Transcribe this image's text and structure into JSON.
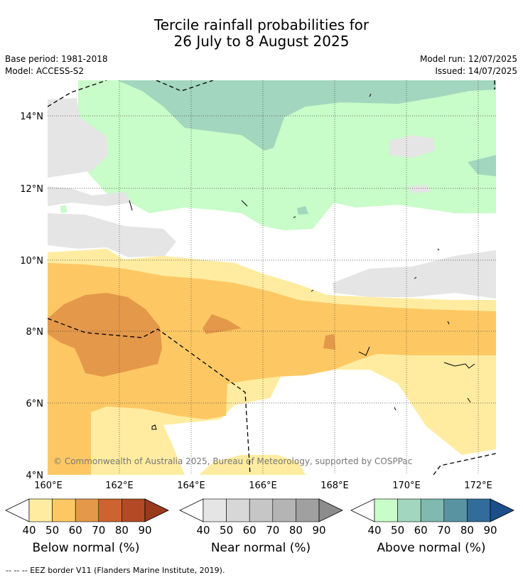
{
  "title": {
    "line1": "Tercile rainfall probabilities for",
    "line2": "26 July to 8 August 2025"
  },
  "meta": {
    "base_period": "Base period: 1981-2018",
    "model": "Model: ACCESS-S2",
    "model_run": "Model run: 12/07/2025",
    "issued": "Issued: 14/07/2025"
  },
  "map": {
    "lat_labels": [
      "14°N",
      "12°N",
      "10°N",
      "8°N",
      "6°N",
      "4°N"
    ],
    "lon_labels": [
      "160°E",
      "162°E",
      "164°E",
      "166°E",
      "168°E",
      "170°E",
      "172°E"
    ],
    "copyright": "© Commonwealth of Australia 2025, Bureau of Meteorology, supported by COSPPac"
  },
  "colorbars": [
    {
      "label": "Below normal (%)",
      "ticks": [
        "40",
        "50",
        "60",
        "70",
        "80",
        "90"
      ],
      "colors": [
        "#ffeca0",
        "#fdc864",
        "#e4984a",
        "#cd6331",
        "#b24a26",
        "#9a3a1d"
      ]
    },
    {
      "label": "Near normal (%)",
      "ticks": [
        "40",
        "50",
        "60",
        "70",
        "80",
        "90"
      ],
      "colors": [
        "#e5e5e5",
        "#d7d7d7",
        "#c6c6c6",
        "#b4b4b4",
        "#a0a0a0",
        "#8c8c8c"
      ]
    },
    {
      "label": "Above normal (%)",
      "ticks": [
        "40",
        "50",
        "60",
        "70",
        "80",
        "90"
      ],
      "colors": [
        "#c8fcc8",
        "#a2d6be",
        "#7fb9b0",
        "#5993a1",
        "#316c9a",
        "#1b4e8a"
      ]
    }
  ],
  "footer": "--  --  -- EEZ border V11 (Flanders Marine Institute, 2019)."
}
